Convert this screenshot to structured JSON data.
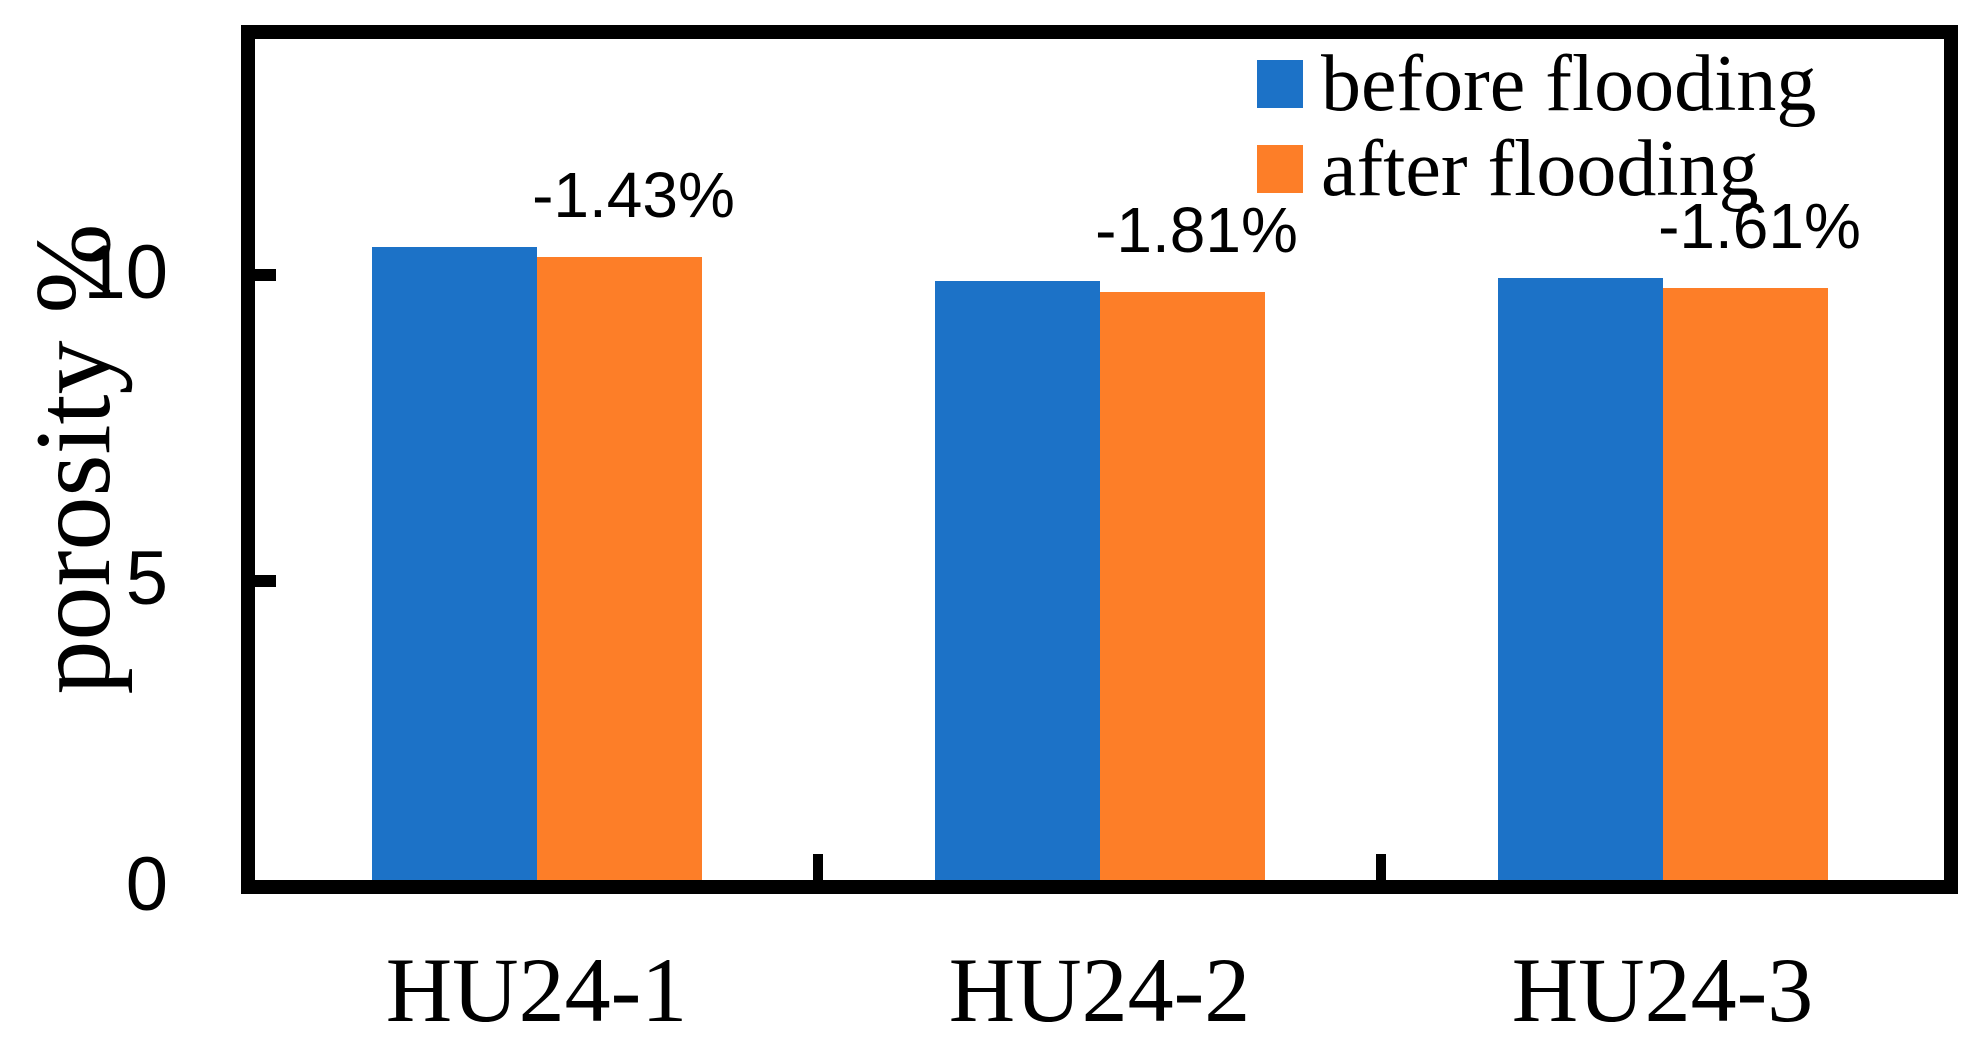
{
  "chart_data": {
    "type": "bar",
    "title": "",
    "ylabel": "porosity %",
    "xlabel": "",
    "categories": [
      "HU24-1",
      "HU24-2",
      "HU24-3"
    ],
    "series": [
      {
        "name": "before flooding",
        "color": "#1C72C7",
        "values": [
          10.45,
          9.9,
          9.95
        ]
      },
      {
        "name": "after flooding",
        "color": "#FD7E28",
        "values": [
          10.3,
          9.72,
          9.79
        ]
      }
    ],
    "annotations": [
      "-1.43%",
      "-1.81%",
      "-1.61%"
    ],
    "y_ticks": [
      0,
      5,
      10
    ],
    "ylim": [
      0,
      14
    ],
    "grid": false,
    "legend_position": "top-right-inside",
    "axis_color": "#000000",
    "background_color": "#ffffff"
  }
}
